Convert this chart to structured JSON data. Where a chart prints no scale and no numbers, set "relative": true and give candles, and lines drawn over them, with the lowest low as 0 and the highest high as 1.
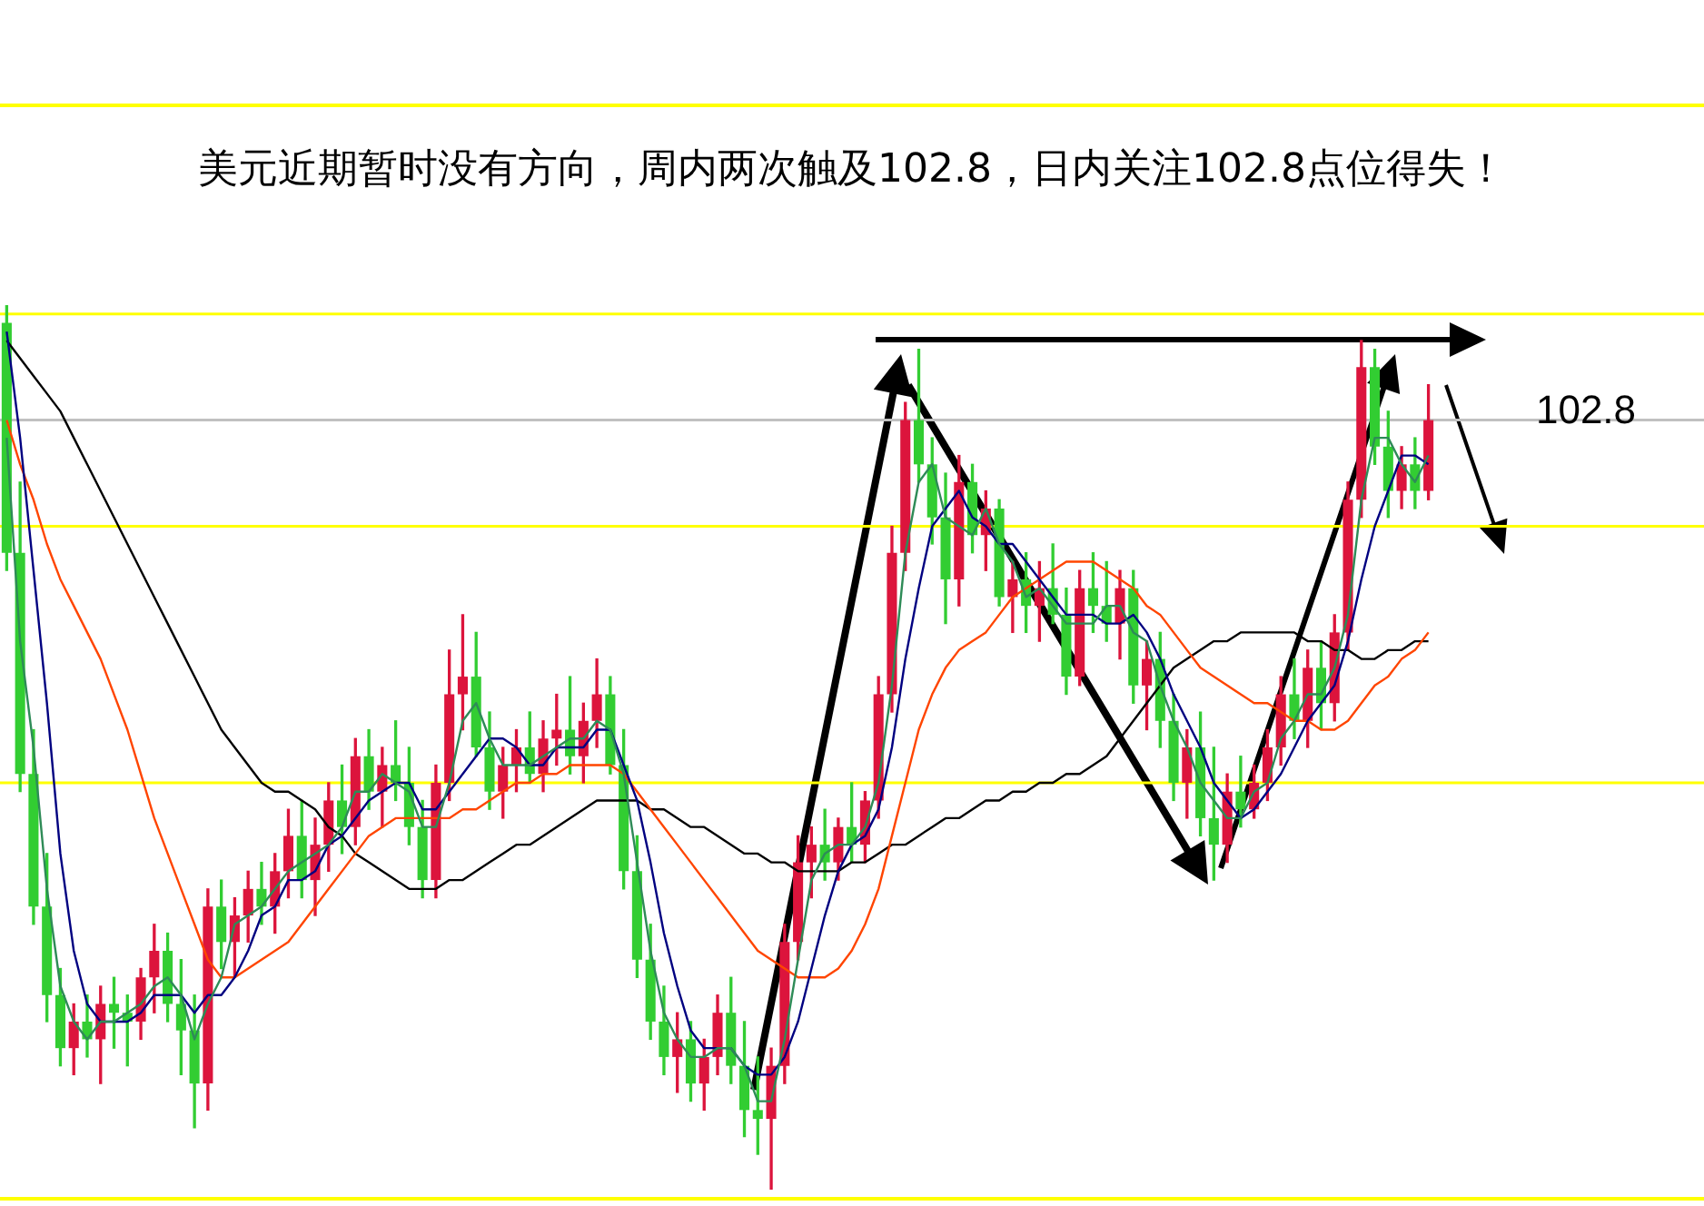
{
  "chart_data": {
    "type": "candlestick",
    "title": "美元近期暂时没有方向，周内两次触及102.8，日内关注102.8点位得失！",
    "relative": true,
    "categories": [
      null,
      null,
      null,
      null,
      null,
      null,
      null,
      null,
      null,
      null,
      null,
      null,
      null,
      null,
      null,
      null,
      null,
      null,
      null,
      null,
      null,
      null,
      null,
      null,
      null,
      null,
      null,
      null,
      null,
      null,
      null,
      null,
      null,
      null,
      null,
      null,
      null,
      null,
      null,
      null,
      null,
      null,
      null,
      null,
      null,
      null,
      null,
      null,
      null,
      null,
      null,
      null,
      null,
      null,
      null,
      null,
      null,
      null,
      null,
      null,
      null,
      null,
      null,
      null,
      null,
      null,
      null,
      null,
      null,
      null,
      null,
      null,
      null,
      null,
      null,
      null,
      null,
      null,
      null,
      null,
      null,
      null,
      null,
      null,
      null,
      null,
      null,
      null,
      null,
      null,
      null,
      null,
      null,
      null,
      null,
      null,
      null,
      null,
      null,
      null,
      null,
      null,
      null,
      null,
      null,
      null,
      null
    ],
    "ohlc": [
      [
        0.98,
        1.0,
        0.7,
        0.72
      ],
      [
        0.72,
        0.8,
        0.45,
        0.47
      ],
      [
        0.47,
        0.52,
        0.3,
        0.32
      ],
      [
        0.32,
        0.38,
        0.19,
        0.22
      ],
      [
        0.22,
        0.25,
        0.14,
        0.16
      ],
      [
        0.16,
        0.21,
        0.13,
        0.19
      ],
      [
        0.19,
        0.22,
        0.15,
        0.17
      ],
      [
        0.17,
        0.23,
        0.12,
        0.21
      ],
      [
        0.21,
        0.24,
        0.16,
        0.2
      ],
      [
        0.2,
        0.22,
        0.14,
        0.19
      ],
      [
        0.19,
        0.25,
        0.17,
        0.24
      ],
      [
        0.24,
        0.3,
        0.2,
        0.27
      ],
      [
        0.27,
        0.29,
        0.19,
        0.21
      ],
      [
        0.21,
        0.26,
        0.13,
        0.18
      ],
      [
        0.18,
        0.22,
        0.07,
        0.12
      ],
      [
        0.12,
        0.34,
        0.09,
        0.32
      ],
      [
        0.32,
        0.35,
        0.25,
        0.28
      ],
      [
        0.28,
        0.33,
        0.24,
        0.31
      ],
      [
        0.31,
        0.36,
        0.28,
        0.34
      ],
      [
        0.34,
        0.37,
        0.3,
        0.32
      ],
      [
        0.32,
        0.38,
        0.29,
        0.36
      ],
      [
        0.36,
        0.43,
        0.33,
        0.4
      ],
      [
        0.4,
        0.44,
        0.33,
        0.35
      ],
      [
        0.35,
        0.42,
        0.31,
        0.39
      ],
      [
        0.39,
        0.46,
        0.36,
        0.44
      ],
      [
        0.44,
        0.48,
        0.38,
        0.41
      ],
      [
        0.41,
        0.51,
        0.39,
        0.49
      ],
      [
        0.49,
        0.52,
        0.43,
        0.45
      ],
      [
        0.45,
        0.5,
        0.41,
        0.48
      ],
      [
        0.48,
        0.53,
        0.44,
        0.46
      ],
      [
        0.46,
        0.5,
        0.39,
        0.41
      ],
      [
        0.41,
        0.44,
        0.33,
        0.35
      ],
      [
        0.35,
        0.48,
        0.33,
        0.46
      ],
      [
        0.46,
        0.61,
        0.44,
        0.56
      ],
      [
        0.56,
        0.65,
        0.52,
        0.58
      ],
      [
        0.58,
        0.63,
        0.49,
        0.5
      ],
      [
        0.5,
        0.54,
        0.43,
        0.45
      ],
      [
        0.45,
        0.5,
        0.42,
        0.48
      ],
      [
        0.48,
        0.52,
        0.45,
        0.5
      ],
      [
        0.5,
        0.54,
        0.46,
        0.47
      ],
      [
        0.47,
        0.53,
        0.45,
        0.51
      ],
      [
        0.51,
        0.56,
        0.48,
        0.52
      ],
      [
        0.52,
        0.58,
        0.47,
        0.49
      ],
      [
        0.49,
        0.55,
        0.46,
        0.53
      ],
      [
        0.53,
        0.6,
        0.5,
        0.56
      ],
      [
        0.56,
        0.58,
        0.47,
        0.48
      ],
      [
        0.48,
        0.52,
        0.34,
        0.36
      ],
      [
        0.36,
        0.4,
        0.24,
        0.26
      ],
      [
        0.26,
        0.3,
        0.17,
        0.19
      ],
      [
        0.19,
        0.23,
        0.13,
        0.15
      ],
      [
        0.15,
        0.2,
        0.11,
        0.17
      ],
      [
        0.17,
        0.19,
        0.1,
        0.12
      ],
      [
        0.12,
        0.17,
        0.09,
        0.15
      ],
      [
        0.15,
        0.22,
        0.13,
        0.2
      ],
      [
        0.2,
        0.24,
        0.12,
        0.14
      ],
      [
        0.14,
        0.19,
        0.06,
        0.09
      ],
      [
        0.09,
        0.15,
        0.04,
        0.08
      ],
      [
        0.08,
        0.16,
        0.0,
        0.14
      ],
      [
        0.14,
        0.3,
        0.12,
        0.28
      ],
      [
        0.28,
        0.4,
        0.26,
        0.37
      ],
      [
        0.37,
        0.41,
        0.33,
        0.39
      ],
      [
        0.39,
        0.43,
        0.35,
        0.37
      ],
      [
        0.37,
        0.42,
        0.35,
        0.41
      ],
      [
        0.41,
        0.46,
        0.37,
        0.39
      ],
      [
        0.39,
        0.45,
        0.37,
        0.44
      ],
      [
        0.44,
        0.58,
        0.42,
        0.56
      ],
      [
        0.56,
        0.75,
        0.54,
        0.72
      ],
      [
        0.72,
        0.89,
        0.7,
        0.87
      ],
      [
        0.87,
        0.95,
        0.8,
        0.82
      ],
      [
        0.82,
        0.85,
        0.73,
        0.76
      ],
      [
        0.76,
        0.81,
        0.64,
        0.69
      ],
      [
        0.69,
        0.83,
        0.66,
        0.8
      ],
      [
        0.8,
        0.82,
        0.72,
        0.74
      ],
      [
        0.74,
        0.79,
        0.7,
        0.77
      ],
      [
        0.77,
        0.78,
        0.66,
        0.67
      ],
      [
        0.67,
        0.71,
        0.63,
        0.69
      ],
      [
        0.69,
        0.72,
        0.63,
        0.66
      ],
      [
        0.66,
        0.71,
        0.62,
        0.68
      ],
      [
        0.68,
        0.73,
        0.64,
        0.65
      ],
      [
        0.65,
        0.68,
        0.56,
        0.58
      ],
      [
        0.58,
        0.7,
        0.57,
        0.68
      ],
      [
        0.68,
        0.72,
        0.63,
        0.66
      ],
      [
        0.66,
        0.71,
        0.62,
        0.64
      ],
      [
        0.64,
        0.7,
        0.6,
        0.68
      ],
      [
        0.68,
        0.7,
        0.55,
        0.57
      ],
      [
        0.57,
        0.62,
        0.52,
        0.6
      ],
      [
        0.6,
        0.63,
        0.5,
        0.53
      ],
      [
        0.53,
        0.56,
        0.44,
        0.46
      ],
      [
        0.46,
        0.52,
        0.42,
        0.5
      ],
      [
        0.5,
        0.54,
        0.4,
        0.42
      ],
      [
        0.42,
        0.5,
        0.35,
        0.39
      ],
      [
        0.39,
        0.47,
        0.37,
        0.45
      ],
      [
        0.45,
        0.49,
        0.41,
        0.43
      ],
      [
        0.43,
        0.48,
        0.42,
        0.46
      ],
      [
        0.46,
        0.52,
        0.44,
        0.5
      ],
      [
        0.5,
        0.58,
        0.48,
        0.56
      ],
      [
        0.56,
        0.6,
        0.51,
        0.53
      ],
      [
        0.53,
        0.61,
        0.5,
        0.59
      ],
      [
        0.59,
        0.62,
        0.52,
        0.55
      ],
      [
        0.55,
        0.65,
        0.53,
        0.63
      ],
      [
        0.63,
        0.8,
        0.61,
        0.78
      ],
      [
        0.78,
        0.96,
        0.76,
        0.93
      ],
      [
        0.93,
        0.95,
        0.82,
        0.84
      ],
      [
        0.84,
        0.88,
        0.76,
        0.79
      ],
      [
        0.79,
        0.84,
        0.77,
        0.82
      ],
      [
        0.82,
        0.85,
        0.77,
        0.79
      ],
      [
        0.79,
        0.91,
        0.78,
        0.87
      ]
    ],
    "colors": [
      "#32cd32",
      "#32cd32",
      "#32cd32",
      "#32cd32",
      "#32cd32",
      "#dc143c",
      "#32cd32",
      "#dc143c",
      "#32cd32",
      "#32cd32",
      "#dc143c",
      "#dc143c",
      "#32cd32",
      "#32cd32",
      "#32cd32",
      "#dc143c",
      "#32cd32",
      "#dc143c",
      "#dc143c",
      "#32cd32",
      "#dc143c",
      "#dc143c",
      "#32cd32",
      "#dc143c",
      "#dc143c",
      "#32cd32",
      "#dc143c",
      "#32cd32",
      "#dc143c",
      "#32cd32",
      "#32cd32",
      "#32cd32",
      "#dc143c",
      "#dc143c",
      "#dc143c",
      "#32cd32",
      "#32cd32",
      "#dc143c",
      "#dc143c",
      "#32cd32",
      "#dc143c",
      "#dc143c",
      "#32cd32",
      "#dc143c",
      "#dc143c",
      "#32cd32",
      "#32cd32",
      "#32cd32",
      "#32cd32",
      "#32cd32",
      "#dc143c",
      "#32cd32",
      "#dc143c",
      "#dc143c",
      "#32cd32",
      "#32cd32",
      "#32cd32",
      "#dc143c",
      "#dc143c",
      "#dc143c",
      "#dc143c",
      "#32cd32",
      "#dc143c",
      "#32cd32",
      "#dc143c",
      "#dc143c",
      "#dc143c",
      "#dc143c",
      "#32cd32",
      "#32cd32",
      "#32cd32",
      "#dc143c",
      "#32cd32",
      "#dc143c",
      "#32cd32",
      "#dc143c",
      "#32cd32",
      "#dc143c",
      "#32cd32",
      "#32cd32",
      "#dc143c",
      "#32cd32",
      "#32cd32",
      "#dc143c",
      "#32cd32",
      "#dc143c",
      "#32cd32",
      "#32cd32",
      "#dc143c",
      "#32cd32",
      "#32cd32",
      "#dc143c",
      "#32cd32",
      "#dc143c",
      "#dc143c",
      "#dc143c",
      "#32cd32",
      "#dc143c",
      "#32cd32",
      "#dc143c",
      "#dc143c",
      "#dc143c",
      "#32cd32",
      "#32cd32",
      "#dc143c",
      "#32cd32",
      "#dc143c"
    ],
    "series": [
      {
        "type": "line",
        "color": "#2e8b57",
        "values": [
          0.85,
          0.62,
          0.5,
          0.34,
          0.23,
          0.19,
          0.17,
          0.19,
          0.19,
          0.2,
          0.21,
          0.23,
          0.24,
          0.22,
          0.17,
          0.21,
          0.24,
          0.3,
          0.31,
          0.32,
          0.34,
          0.36,
          0.37,
          0.38,
          0.39,
          0.41,
          0.45,
          0.45,
          0.47,
          0.46,
          0.45,
          0.41,
          0.41,
          0.46,
          0.53,
          0.55,
          0.51,
          0.48,
          0.48,
          0.48,
          0.49,
          0.5,
          0.51,
          0.51,
          0.53,
          0.52,
          0.47,
          0.37,
          0.27,
          0.2,
          0.17,
          0.15,
          0.15,
          0.16,
          0.16,
          0.14,
          0.1,
          0.1,
          0.17,
          0.26,
          0.35,
          0.38,
          0.39,
          0.39,
          0.41,
          0.46,
          0.57,
          0.72,
          0.8,
          0.82,
          0.76,
          0.75,
          0.74,
          0.77,
          0.73,
          0.71,
          0.67,
          0.68,
          0.66,
          0.64,
          0.64,
          0.64,
          0.66,
          0.66,
          0.63,
          0.62,
          0.57,
          0.53,
          0.5,
          0.46,
          0.44,
          0.42,
          0.42,
          0.45,
          0.46,
          0.51,
          0.53,
          0.56,
          0.56,
          0.59,
          0.65,
          0.78,
          0.85,
          0.85,
          0.82,
          0.8,
          0.83
        ]
      },
      {
        "type": "line",
        "color": "#000080",
        "values": [
          0.97,
          0.85,
          0.7,
          0.55,
          0.38,
          0.27,
          0.21,
          0.19,
          0.19,
          0.19,
          0.2,
          0.22,
          0.22,
          0.22,
          0.2,
          0.22,
          0.22,
          0.24,
          0.27,
          0.31,
          0.32,
          0.35,
          0.35,
          0.36,
          0.39,
          0.4,
          0.42,
          0.44,
          0.45,
          0.46,
          0.46,
          0.43,
          0.43,
          0.45,
          0.47,
          0.49,
          0.51,
          0.51,
          0.5,
          0.48,
          0.48,
          0.5,
          0.5,
          0.5,
          0.52,
          0.52,
          0.48,
          0.44,
          0.37,
          0.29,
          0.23,
          0.18,
          0.16,
          0.16,
          0.16,
          0.14,
          0.13,
          0.13,
          0.15,
          0.19,
          0.25,
          0.31,
          0.36,
          0.39,
          0.4,
          0.43,
          0.5,
          0.6,
          0.68,
          0.75,
          0.77,
          0.79,
          0.76,
          0.75,
          0.73,
          0.73,
          0.71,
          0.69,
          0.67,
          0.65,
          0.65,
          0.65,
          0.64,
          0.64,
          0.65,
          0.63,
          0.6,
          0.56,
          0.53,
          0.5,
          0.46,
          0.44,
          0.42,
          0.43,
          0.45,
          0.47,
          0.5,
          0.53,
          0.55,
          0.57,
          0.62,
          0.69,
          0.75,
          0.79,
          0.83,
          0.83,
          0.82
        ]
      },
      {
        "type": "line",
        "color": "#ff4500",
        "values": [
          0.87,
          0.82,
          0.78,
          0.73,
          0.69,
          0.66,
          0.63,
          0.6,
          0.56,
          0.52,
          0.47,
          0.42,
          0.38,
          0.34,
          0.3,
          0.26,
          0.24,
          0.24,
          0.25,
          0.26,
          0.27,
          0.28,
          0.3,
          0.32,
          0.34,
          0.36,
          0.38,
          0.4,
          0.41,
          0.42,
          0.42,
          0.42,
          0.42,
          0.42,
          0.43,
          0.43,
          0.44,
          0.45,
          0.46,
          0.46,
          0.47,
          0.47,
          0.48,
          0.48,
          0.48,
          0.48,
          0.47,
          0.45,
          0.43,
          0.41,
          0.39,
          0.37,
          0.35,
          0.33,
          0.31,
          0.29,
          0.27,
          0.26,
          0.25,
          0.24,
          0.24,
          0.24,
          0.25,
          0.27,
          0.3,
          0.34,
          0.4,
          0.46,
          0.52,
          0.56,
          0.59,
          0.61,
          0.62,
          0.63,
          0.65,
          0.67,
          0.68,
          0.69,
          0.7,
          0.71,
          0.71,
          0.71,
          0.7,
          0.69,
          0.68,
          0.66,
          0.65,
          0.63,
          0.61,
          0.59,
          0.58,
          0.57,
          0.56,
          0.55,
          0.55,
          0.54,
          0.53,
          0.53,
          0.52,
          0.52,
          0.53,
          0.55,
          0.57,
          0.58,
          0.6,
          0.61,
          0.63
        ]
      },
      {
        "type": "line",
        "color": "#000000",
        "values": [
          0.96,
          0.94,
          0.92,
          0.9,
          0.88,
          0.85,
          0.82,
          0.79,
          0.76,
          0.73,
          0.7,
          0.67,
          0.64,
          0.61,
          0.58,
          0.55,
          0.52,
          0.5,
          0.48,
          0.46,
          0.45,
          0.45,
          0.44,
          0.43,
          0.41,
          0.4,
          0.38,
          0.37,
          0.36,
          0.35,
          0.34,
          0.34,
          0.34,
          0.35,
          0.35,
          0.36,
          0.37,
          0.38,
          0.39,
          0.39,
          0.4,
          0.41,
          0.42,
          0.43,
          0.44,
          0.44,
          0.44,
          0.44,
          0.43,
          0.43,
          0.42,
          0.41,
          0.41,
          0.4,
          0.39,
          0.38,
          0.38,
          0.37,
          0.37,
          0.36,
          0.36,
          0.36,
          0.36,
          0.37,
          0.37,
          0.38,
          0.39,
          0.39,
          0.4,
          0.41,
          0.42,
          0.42,
          0.43,
          0.44,
          0.44,
          0.45,
          0.45,
          0.46,
          0.46,
          0.47,
          0.47,
          0.48,
          0.49,
          0.51,
          0.53,
          0.55,
          0.57,
          0.59,
          0.6,
          0.61,
          0.62,
          0.62,
          0.63,
          0.63,
          0.63,
          0.63,
          0.63,
          0.62,
          0.62,
          0.61,
          0.61,
          0.6,
          0.6,
          0.61,
          0.61,
          0.62,
          0.62
        ]
      }
    ],
    "annotations": [
      "102.8"
    ],
    "ref_lines": [
      {
        "axis": "y",
        "value": 0.99,
        "label": null,
        "color": "#ffff00"
      },
      {
        "axis": "y",
        "value": 0.87,
        "label": null,
        "color": "#c0c0c0"
      },
      {
        "axis": "y",
        "value": 0.75,
        "label": null,
        "color": "#ffff00"
      },
      {
        "axis": "y",
        "value": 0.46,
        "label": null,
        "color": "#ffff00"
      }
    ]
  }
}
